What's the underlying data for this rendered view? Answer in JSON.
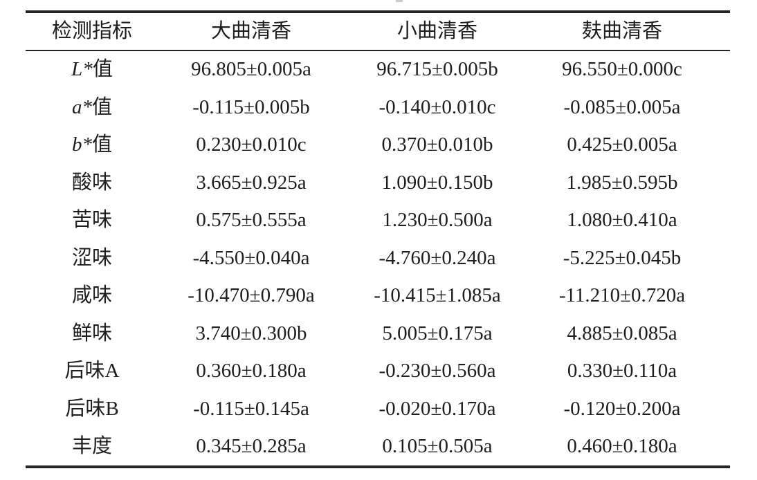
{
  "page": {
    "background": "#ffffff",
    "text_color": "#1e1e1e",
    "rule_color": "#242424"
  },
  "table": {
    "columns": [
      "检测指标",
      "大曲清香",
      "小曲清香",
      "麸曲清香"
    ],
    "rows": [
      {
        "label_italic": "L*",
        "label": "值",
        "values": [
          "96.805±0.005a",
          "96.715±0.005b",
          "96.550±0.000c"
        ]
      },
      {
        "label_italic": "a*",
        "label": "值",
        "values": [
          "-0.115±0.005b",
          "-0.140±0.010c",
          "-0.085±0.005a"
        ]
      },
      {
        "label_italic": "b*",
        "label": "值",
        "values": [
          "0.230±0.010c",
          "0.370±0.010b",
          "0.425±0.005a"
        ]
      },
      {
        "label_italic": "",
        "label": "酸味",
        "values": [
          "3.665±0.925a",
          "1.090±0.150b",
          "1.985±0.595b"
        ]
      },
      {
        "label_italic": "",
        "label": "苦味",
        "values": [
          "0.575±0.555a",
          "1.230±0.500a",
          "1.080±0.410a"
        ]
      },
      {
        "label_italic": "",
        "label": "涩味",
        "values": [
          "-4.550±0.040a",
          "-4.760±0.240a",
          "-5.225±0.045b"
        ]
      },
      {
        "label_italic": "",
        "label": "咸味",
        "values": [
          "-10.470±0.790a",
          "-10.415±1.085a",
          "-11.210±0.720a"
        ]
      },
      {
        "label_italic": "",
        "label": "鲜味",
        "values": [
          "3.740±0.300b",
          "5.005±0.175a",
          "4.885±0.085a"
        ]
      },
      {
        "label_italic": "",
        "label": "后味A",
        "values": [
          "0.360±0.180a",
          "-0.230±0.560a",
          "0.330±0.110a"
        ]
      },
      {
        "label_italic": "",
        "label": "后味B",
        "values": [
          "-0.115±0.145a",
          "-0.020±0.170a",
          "-0.120±0.200a"
        ]
      },
      {
        "label_italic": "",
        "label": "丰度",
        "values": [
          "0.345±0.285a",
          "0.105±0.505a",
          "0.460±0.180a"
        ]
      }
    ]
  }
}
